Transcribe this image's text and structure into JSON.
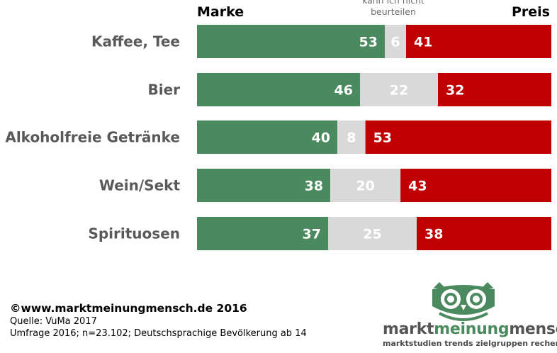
{
  "header": {
    "left": "Marke",
    "middle_line1": "kann ich nicht",
    "middle_line2": "beurteilen",
    "right": "Preis"
  },
  "colors": {
    "marke": "#4a8a5e",
    "neutral": "#d9d9d9",
    "preis": "#c00000",
    "label": "#595959"
  },
  "chart_data": {
    "type": "bar",
    "orientation": "horizontal",
    "stacked": true,
    "categories": [
      "Kaffee, Tee",
      "Bier",
      "Alkoholfreie Getränke",
      "Wein/Sekt",
      "Spirituosen"
    ],
    "series": [
      {
        "name": "Marke",
        "values": [
          53,
          46,
          40,
          38,
          37
        ]
      },
      {
        "name": "kann ich nicht beurteilen",
        "values": [
          6,
          22,
          8,
          20,
          25
        ]
      },
      {
        "name": "Preis",
        "values": [
          41,
          32,
          53,
          43,
          38
        ]
      }
    ]
  },
  "footer": {
    "copyright": "©www.marktmeinungmensch.de 2016",
    "source": "Quelle: VuMa 2017",
    "survey": "Umfrage 2016; n=23.102; Deutschsprachige Bevölkerung ab 14"
  },
  "logo": {
    "word_part1": "markt",
    "word_part2": "meinung",
    "word_part3": "mensch",
    "tagline": "marktstudien trends zielgruppen recherchen"
  }
}
